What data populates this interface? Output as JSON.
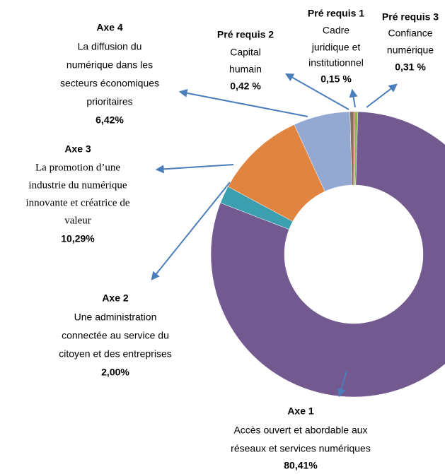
{
  "chart_data": {
    "type": "donut",
    "categories": [
      "Pré requis 1",
      "Pré requis 3",
      "Axe 1",
      "Axe 2",
      "Axe 3",
      "Axe 4",
      "Pré requis 2"
    ],
    "descriptions": [
      [
        "Cadre",
        "juridique et",
        "institutionnel"
      ],
      [
        "Confiance",
        "numérique"
      ],
      [
        "Accès ouvert et abordable aux",
        "réseaux et services numériques"
      ],
      [
        "Une administration",
        "connectée au service du",
        "citoyen et des entreprises"
      ],
      [
        "La promotion d’une",
        "industrie du numérique",
        "innovante et créatrice de",
        "valeur"
      ],
      [
        "La diffusion du",
        "numérique dans les",
        "secteurs  économiques",
        "prioritaires"
      ],
      [
        "Capital",
        "humain"
      ]
    ],
    "values": [
      0.15,
      0.31,
      80.41,
      2.0,
      10.29,
      6.42,
      0.42
    ],
    "value_labels": [
      "0,15 %",
      "0,31 %",
      "80,41%",
      "2,00%",
      "10,29%",
      "6,42%",
      "0,42 %"
    ],
    "colors": [
      "#c0392b",
      "#8db44a",
      "#725990",
      "#3c9fb0",
      "#e0843f",
      "#94a9d1",
      "#8c6e5b"
    ]
  }
}
